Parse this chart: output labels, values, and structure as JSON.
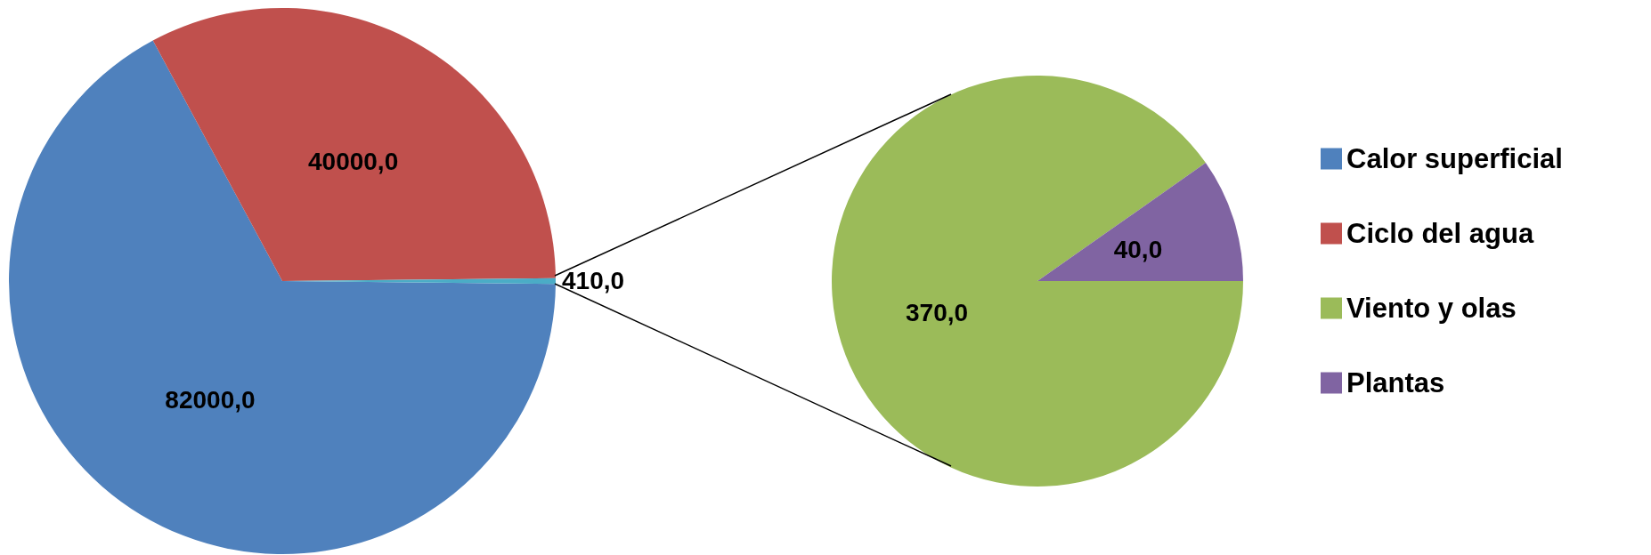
{
  "chart_data": [
    {
      "type": "pie",
      "categories": [
        "Calor superficial",
        "Ciclo del agua",
        null
      ],
      "values": [
        82000,
        40000,
        410
      ],
      "colors": [
        "#4f81bd",
        "#c0504d",
        "#4bacc6"
      ],
      "value_labels": [
        "82000,0",
        "40000,0",
        "410,0"
      ],
      "legend": "right"
    },
    {
      "type": "pie",
      "categories": [
        "Viento y olas",
        "Plantas"
      ],
      "values": [
        370,
        40
      ],
      "colors": [
        "#9bbb59",
        "#8064a2"
      ],
      "value_labels": [
        "370,0",
        "40,0"
      ],
      "legend": "right"
    }
  ]
}
